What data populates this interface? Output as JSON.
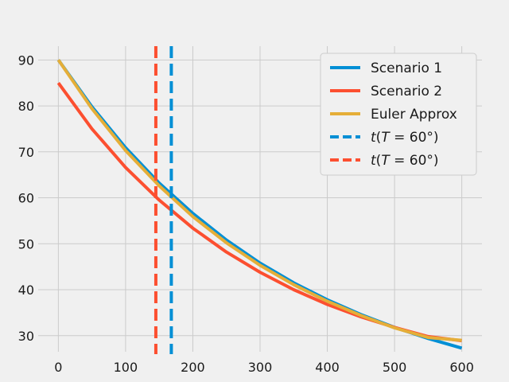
{
  "chart_data": {
    "type": "line",
    "title": "",
    "xlabel": "",
    "ylabel": "",
    "xlim": [
      -30,
      630
    ],
    "ylim": [
      26.5,
      93
    ],
    "xticks": [
      0,
      100,
      200,
      300,
      400,
      500,
      600
    ],
    "xtick_labels": [
      "0",
      "100",
      "200",
      "300",
      "400",
      "500",
      "600"
    ],
    "yticks": [
      30,
      40,
      50,
      60,
      70,
      80,
      90
    ],
    "ytick_labels": [
      "30",
      "40",
      "50",
      "60",
      "70",
      "80",
      "90"
    ],
    "grid": true,
    "legend_position": "top-right",
    "x": [
      0,
      50,
      100,
      150,
      200,
      250,
      300,
      350,
      400,
      450,
      500,
      550,
      600
    ],
    "series": [
      {
        "name": "Scenario 1",
        "color": "#008fd5",
        "style": "solid",
        "values": [
          90.0,
          79.8,
          70.9,
          63.2,
          56.6,
          50.8,
          45.8,
          41.5,
          37.8,
          34.6,
          31.8,
          29.4,
          27.3
        ]
      },
      {
        "name": "Scenario 2",
        "color": "#fc4f30",
        "style": "solid",
        "values": [
          85.0,
          75.0,
          66.6,
          59.5,
          53.4,
          48.2,
          43.8,
          40.0,
          36.8,
          34.1,
          31.8,
          29.8,
          28.9
        ]
      },
      {
        "name": "Euler Approx",
        "color": "#e5ae38",
        "style": "solid",
        "values": [
          90.0,
          79.4,
          70.3,
          62.6,
          55.9,
          50.2,
          45.3,
          41.1,
          37.5,
          34.4,
          31.7,
          29.6,
          29.0
        ]
      }
    ],
    "vlines": [
      {
        "name": "t(T = 60°)",
        "x": 168,
        "color": "#008fd5",
        "style": "dashed"
      },
      {
        "name": "t(T = 60°)",
        "x": 145,
        "color": "#fc4f30",
        "style": "dashed"
      }
    ],
    "legend": [
      {
        "label": "Scenario 1",
        "color": "#008fd5",
        "style": "solid"
      },
      {
        "label": "Scenario 2",
        "color": "#fc4f30",
        "style": "solid"
      },
      {
        "label": "Euler Approx",
        "color": "#e5ae38",
        "style": "solid"
      },
      {
        "label_t": "t",
        "label_rest": "(",
        "label_T": "T",
        "label_tail": " = 60°)",
        "color": "#008fd5",
        "style": "dashed"
      },
      {
        "label_t": "t",
        "label_rest": "(",
        "label_T": "T",
        "label_tail": " = 60°)",
        "color": "#fc4f30",
        "style": "dashed"
      }
    ],
    "colors": {
      "background": "#f0f0f0",
      "grid": "#cbcbcb"
    }
  }
}
